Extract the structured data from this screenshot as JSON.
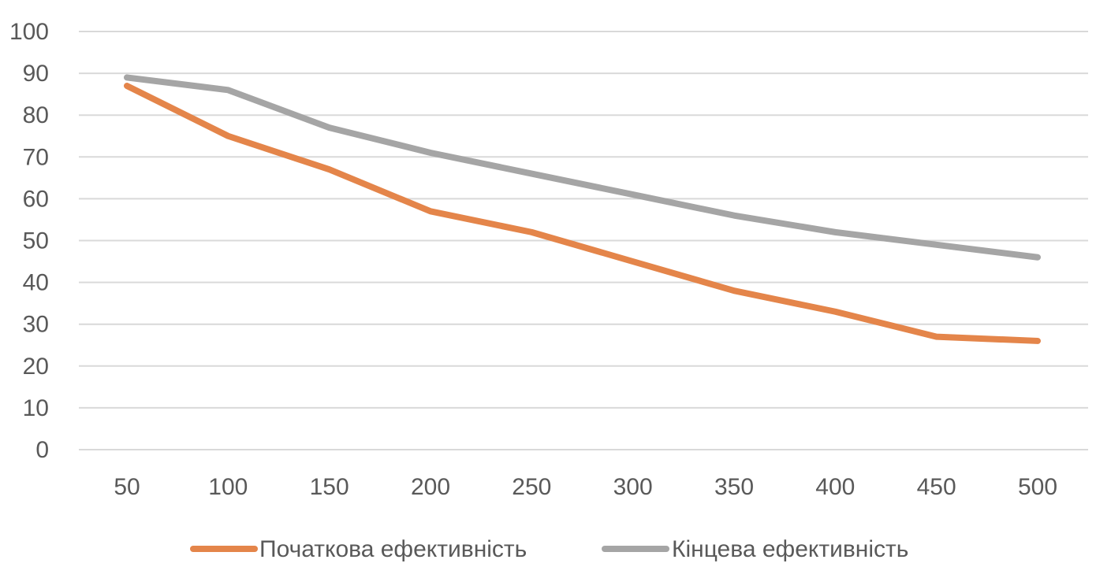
{
  "chart_data": {
    "type": "line",
    "title": "",
    "xlabel": "",
    "ylabel": "",
    "categories": [
      "50",
      "100",
      "150",
      "200",
      "250",
      "300",
      "350",
      "400",
      "450",
      "500"
    ],
    "ylim": [
      0,
      100
    ],
    "yticks": [
      "0",
      "10",
      "20",
      "30",
      "40",
      "50",
      "60",
      "70",
      "80",
      "90",
      "100"
    ],
    "grid": true,
    "legend_position": "bottom",
    "series": [
      {
        "name": "Початкова ефективність",
        "color": "#e4854a",
        "values": [
          87,
          75,
          67,
          57,
          52,
          45,
          38,
          33,
          27,
          26
        ]
      },
      {
        "name": "Кінцева ефективність",
        "color": "#a5a5a5",
        "values": [
          89,
          86,
          77,
          71,
          66,
          61,
          56,
          52,
          49,
          46
        ]
      }
    ]
  }
}
